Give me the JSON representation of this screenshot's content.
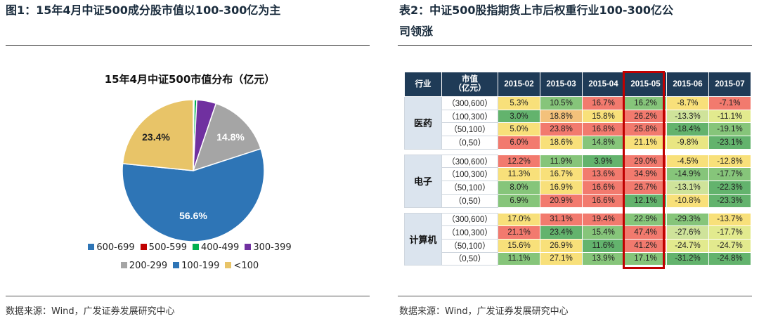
{
  "left": {
    "title": "图1：15年4月中证500成分股市值以100-300亿为主",
    "chart_title": "15年4月中证500市值分布（亿元）",
    "source": "数据来源：Wind，广发证券发展研究中心"
  },
  "right": {
    "title_line1": "表2：中证500股指期货上市后权重行业100-300亿公",
    "title_line2": "司领涨",
    "source": "数据来源：Wind，广发证券发展研究中心"
  },
  "chart_data": {
    "type": "pie",
    "title": "15年4月中证500市值分布（亿元）",
    "slices": [
      {
        "label": "600-699",
        "value": 0.0,
        "color": "#2e75b6"
      },
      {
        "label": "500-599",
        "value": 0.2,
        "color": "#c00000"
      },
      {
        "label": "400-499",
        "value": 0.6,
        "color": "#00b050"
      },
      {
        "label": "300-399",
        "value": 4.4,
        "color": "#7030a0"
      },
      {
        "label": "200-299",
        "value": 14.8,
        "color": "#a5a5a5"
      },
      {
        "label": "100-199",
        "value": 56.6,
        "color": "#2e75b6"
      },
      {
        "label": "<100",
        "value": 23.4,
        "color": "#e8c468"
      }
    ],
    "data_labels": [
      "56.6%",
      "23.4%",
      "14.8%"
    ],
    "legend_rows": [
      [
        "600-699",
        "500-599",
        "400-499",
        "300-399"
      ],
      [
        "200-299",
        "100-199",
        "<100"
      ]
    ]
  },
  "table": {
    "headers": [
      "行业",
      "市值\n（亿元）",
      "2015-02",
      "2015-03",
      "2015-04",
      "2015-05",
      "2015-06",
      "2015-07"
    ],
    "highlight_column": "2015-05",
    "groups": [
      {
        "industry": "医药",
        "rows": [
          {
            "range": "（300,600）",
            "values": [
              "5.3%",
              "10.5%",
              "16.7%",
              "16.2%",
              "-8.7%",
              "-7.1%"
            ]
          },
          {
            "range": "（100,300）",
            "values": [
              "3.0%",
              "18.8%",
              "15.8%",
              "26.2%",
              "-13.3%",
              "-11.1%"
            ]
          },
          {
            "range": "（50,100）",
            "values": [
              "5.0%",
              "23.8%",
              "16.8%",
              "25.8%",
              "-18.4%",
              "-19.1%"
            ]
          },
          {
            "range": "（0,50）",
            "values": [
              "6.0%",
              "18.6%",
              "14.8%",
              "21.1%",
              "-9.8%",
              "-23.1%"
            ]
          }
        ]
      },
      {
        "industry": "电子",
        "rows": [
          {
            "range": "（300,600）",
            "values": [
              "12.2%",
              "11.9%",
              "3.9%",
              "29.0%",
              "-4.5%",
              "-12.8%"
            ]
          },
          {
            "range": "（100,300）",
            "values": [
              "11.3%",
              "16.7%",
              "13.6%",
              "34.9%",
              "-14.9%",
              "-17.7%"
            ]
          },
          {
            "range": "（50,100）",
            "values": [
              "8.0%",
              "16.9%",
              "16.6%",
              "26.7%",
              "-13.1%",
              "-22.3%"
            ]
          },
          {
            "range": "（0,50）",
            "values": [
              "6.9%",
              "20.9%",
              "16.6%",
              "12.1%",
              "-10.8%",
              "-23.3%"
            ]
          }
        ]
      },
      {
        "industry": "计算机",
        "rows": [
          {
            "range": "（300,600）",
            "values": [
              "17.0%",
              "31.1%",
              "19.4%",
              "22.9%",
              "-29.3%",
              "-13.7%"
            ]
          },
          {
            "range": "（100,300）",
            "values": [
              "21.1%",
              "23.4%",
              "15.4%",
              "47.4%",
              "-27.6%",
              "-17.7%"
            ]
          },
          {
            "range": "（50,100）",
            "values": [
              "15.6%",
              "26.9%",
              "11.6%",
              "41.2%",
              "-24.7%",
              "-24.7%"
            ]
          },
          {
            "range": "（0,50）",
            "values": [
              "11.1%",
              "27.1%",
              "13.9%",
              "17.1%",
              "-31.2%",
              "-24.8%"
            ]
          }
        ]
      }
    ],
    "cell_colors": [
      [
        "#f8e07a",
        "#86c57a",
        "#f27a6e",
        "#86c57a",
        "#f8e07a",
        "#f27a6e"
      ],
      [
        "#63b36d",
        "#f3c17b",
        "#f8e07a",
        "#f27a6e",
        "#cfe39a",
        "#e2ea8e"
      ],
      [
        "#f8e07a",
        "#f27a6e",
        "#f27a6e",
        "#f27a6e",
        "#63b36d",
        "#86c57a"
      ],
      [
        "#f27a6e",
        "#f8e07a",
        "#86c57a",
        "#f8e07a",
        "#e9e682",
        "#63b36d"
      ],
      [
        "#f27a6e",
        "#86c57a",
        "#63b36d",
        "#f27a6e",
        "#f8e07a",
        "#f8e07a"
      ],
      [
        "#f8e07a",
        "#f8e07a",
        "#f27a6e",
        "#f27a6e",
        "#86c57a",
        "#86c57a"
      ],
      [
        "#86c57a",
        "#f8e07a",
        "#f27a6e",
        "#f27a6e",
        "#cfe39a",
        "#63b36d"
      ],
      [
        "#86c57a",
        "#f27a6e",
        "#f27a6e",
        "#63b36d",
        "#f8e07a",
        "#63b36d"
      ],
      [
        "#f8e07a",
        "#f27a6e",
        "#f27a6e",
        "#86c57a",
        "#86c57a",
        "#f8e07a"
      ],
      [
        "#f27a6e",
        "#63b36d",
        "#86c57a",
        "#f27a6e",
        "#cfe39a",
        "#e2ea8e"
      ],
      [
        "#f8e07a",
        "#f8e07a",
        "#63b36d",
        "#f27a6e",
        "#e2ea8e",
        "#e2ea8e"
      ],
      [
        "#86c57a",
        "#f8e07a",
        "#86c57a",
        "#86c57a",
        "#63b36d",
        "#63b36d"
      ]
    ]
  }
}
